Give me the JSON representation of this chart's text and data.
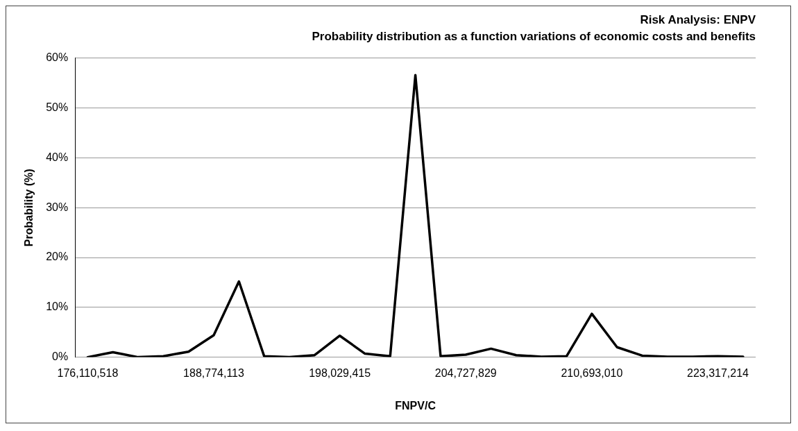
{
  "chart_data": {
    "type": "line",
    "title": "Risk Analysis: ENPV",
    "subtitle": "Probability distribution as a function variations of economic costs and benefits",
    "xlabel": "FNPV/C",
    "ylabel": "Probability (%)",
    "categories": [
      "176,110,518",
      null,
      null,
      null,
      null,
      "188,774,113",
      null,
      null,
      null,
      null,
      "198,029,415",
      null,
      null,
      null,
      null,
      "204,727,829",
      null,
      null,
      null,
      null,
      "210,693,010",
      null,
      null,
      null,
      null,
      "223,317,214",
      null
    ],
    "series": [
      {
        "color": "#000000",
        "values": [
          0,
          1.0,
          0,
          0.2,
          1.1,
          4.4,
          15.2,
          0.2,
          0,
          0.4,
          4.3,
          0.7,
          0.2,
          56.6,
          0.2,
          0.5,
          1.7,
          0.4,
          0.1,
          0.2,
          8.7,
          2.0,
          0.3,
          0.1,
          0.1,
          0.2,
          0.1
        ]
      }
    ],
    "ylim": [
      0,
      60
    ],
    "yticks": [
      {
        "value": 0,
        "label": "0%"
      },
      {
        "value": 10,
        "label": "10%"
      },
      {
        "value": 20,
        "label": "20%"
      },
      {
        "value": 30,
        "label": "30%"
      },
      {
        "value": 40,
        "label": "40%"
      },
      {
        "value": 50,
        "label": "50%"
      },
      {
        "value": 60,
        "label": "60%"
      }
    ],
    "grid": "y",
    "legend": false,
    "marker": "none",
    "line_style": "solid"
  }
}
